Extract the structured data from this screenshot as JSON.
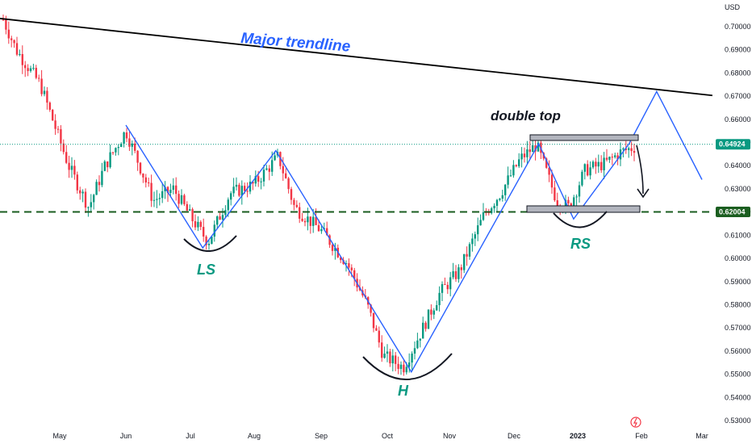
{
  "chart_data": {
    "type": "candlestick",
    "currency": "USD",
    "y_ticks": [
      "0.70000",
      "0.69000",
      "0.68000",
      "0.67000",
      "0.66000",
      "0.65000",
      "0.64000",
      "0.63000",
      "0.62000",
      "0.61000",
      "0.60000",
      "0.59000",
      "0.58000",
      "0.57000",
      "0.56000",
      "0.55000",
      "0.54000",
      "0.53000"
    ],
    "x_ticks": [
      "May",
      "Jun",
      "Jul",
      "Aug",
      "Sep",
      "Oct",
      "Nov",
      "Dec",
      "2023",
      "Feb",
      "Mar"
    ],
    "ylim": [
      0.527,
      0.715
    ],
    "current_price": {
      "label": "0.64924",
      "value": 0.64924,
      "color": "#089981"
    },
    "support": {
      "label": "0.62004",
      "value": 0.62004,
      "color": "#1b5e20"
    },
    "colors": {
      "up": "#089981",
      "down": "#f23645",
      "trendline": "#000000",
      "zigzag": "#2962ff",
      "text_blue": "#2962ff",
      "text_green": "#089981"
    },
    "annotations": {
      "trendline": "Major trendline",
      "double_top": "double top",
      "left_shoulder": "LS",
      "head": "H",
      "right_shoulder": "RS"
    },
    "zigzag": [
      {
        "date": "2022-06-01",
        "value": 0.6575
      },
      {
        "date": "2022-07-07",
        "value": 0.6045
      },
      {
        "date": "2022-08-11",
        "value": 0.6465
      },
      {
        "date": "2022-10-13",
        "value": 0.551
      },
      {
        "date": "2022-12-13",
        "value": 0.6495
      },
      {
        "date": "2022-12-30",
        "value": 0.617
      },
      {
        "date": "2023-01-26",
        "value": 0.6495
      },
      {
        "date": "2023-02-08",
        "value": 0.672
      },
      {
        "date": "2023-03-01",
        "value": 0.634
      }
    ],
    "trendline_points": [
      {
        "date": "2022-04-01",
        "value": 0.7035
      },
      {
        "date": "2023-03-06",
        "value": 0.6703
      }
    ]
  }
}
